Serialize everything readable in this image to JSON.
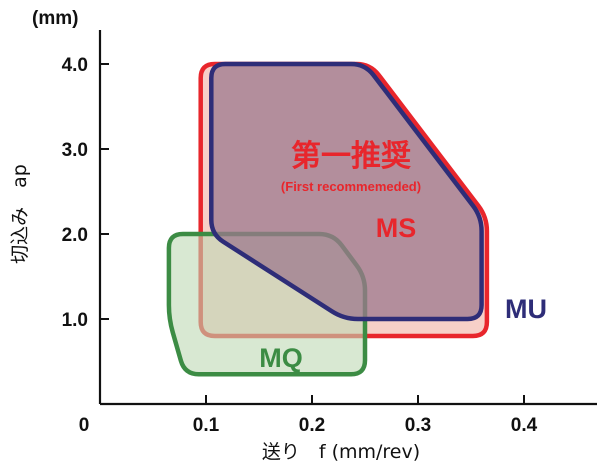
{
  "chart_data": {
    "type": "area",
    "title": "",
    "xlabel": "送り　f (mm/rev)",
    "ylabel": "切込み　ap",
    "y_unit": "(mm)",
    "xlim": [
      0,
      0.46
    ],
    "ylim": [
      0,
      4.45
    ],
    "x_ticks": [
      {
        "value": 0.1,
        "label": "0.1"
      },
      {
        "value": 0.2,
        "label": "0.2"
      },
      {
        "value": 0.3,
        "label": "0.3"
      },
      {
        "value": 0.4,
        "label": "0.4"
      }
    ],
    "y_ticks": [
      {
        "value": 1.0,
        "label": "1.0"
      },
      {
        "value": 2.0,
        "label": "2.0"
      },
      {
        "value": 3.0,
        "label": "3.0"
      },
      {
        "value": 4.0,
        "label": "4.0"
      }
    ],
    "origin_label": "0",
    "grid": false,
    "regions": [
      {
        "name": "MS",
        "color": "#e8262c",
        "fill": "#f6c8be",
        "points": [
          [
            0.095,
            4.0
          ],
          [
            0.255,
            4.0
          ],
          [
            0.365,
            2.2
          ],
          [
            0.365,
            0.8
          ],
          [
            0.095,
            0.8
          ]
        ]
      },
      {
        "name": "MQ",
        "color": "#3c8c44",
        "fill": "#bed8b4",
        "points": [
          [
            0.065,
            2.0
          ],
          [
            0.22,
            2.0
          ],
          [
            0.25,
            1.5
          ],
          [
            0.25,
            0.35
          ],
          [
            0.08,
            0.35
          ],
          [
            0.065,
            1.0
          ]
        ]
      },
      {
        "name": "MU",
        "color": "#2e2d78",
        "fill": "#9c788e",
        "points": [
          [
            0.105,
            4.0
          ],
          [
            0.25,
            4.0
          ],
          [
            0.36,
            2.2
          ],
          [
            0.36,
            1.0
          ],
          [
            0.23,
            1.0
          ],
          [
            0.105,
            2.0
          ]
        ]
      }
    ],
    "annotations": {
      "recommend_title": "第一推奨",
      "recommend_sub": "(First recommemeded)",
      "ms_label": "MS",
      "mu_label": "MU",
      "mq_label": "MQ"
    }
  }
}
